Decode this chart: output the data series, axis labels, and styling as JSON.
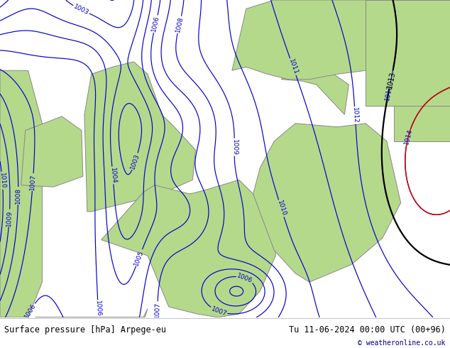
{
  "title_left": "Surface pressure [hPa] Arpege-eu",
  "title_right": "Tu 11-06-2024 00:00 UTC (00+96)",
  "copyright": "© weatheronline.co.uk",
  "land_green": "#b5d98b",
  "ocean_gray": "#c8c8c8",
  "blue_color": "#0000cc",
  "black_color": "#000000",
  "red_color": "#cc0000",
  "footer_fontsize": 8.5,
  "label_fontsize": 6.5,
  "lon_min": -12,
  "lon_max": 20,
  "lat_min": 44,
  "lat_max": 62
}
